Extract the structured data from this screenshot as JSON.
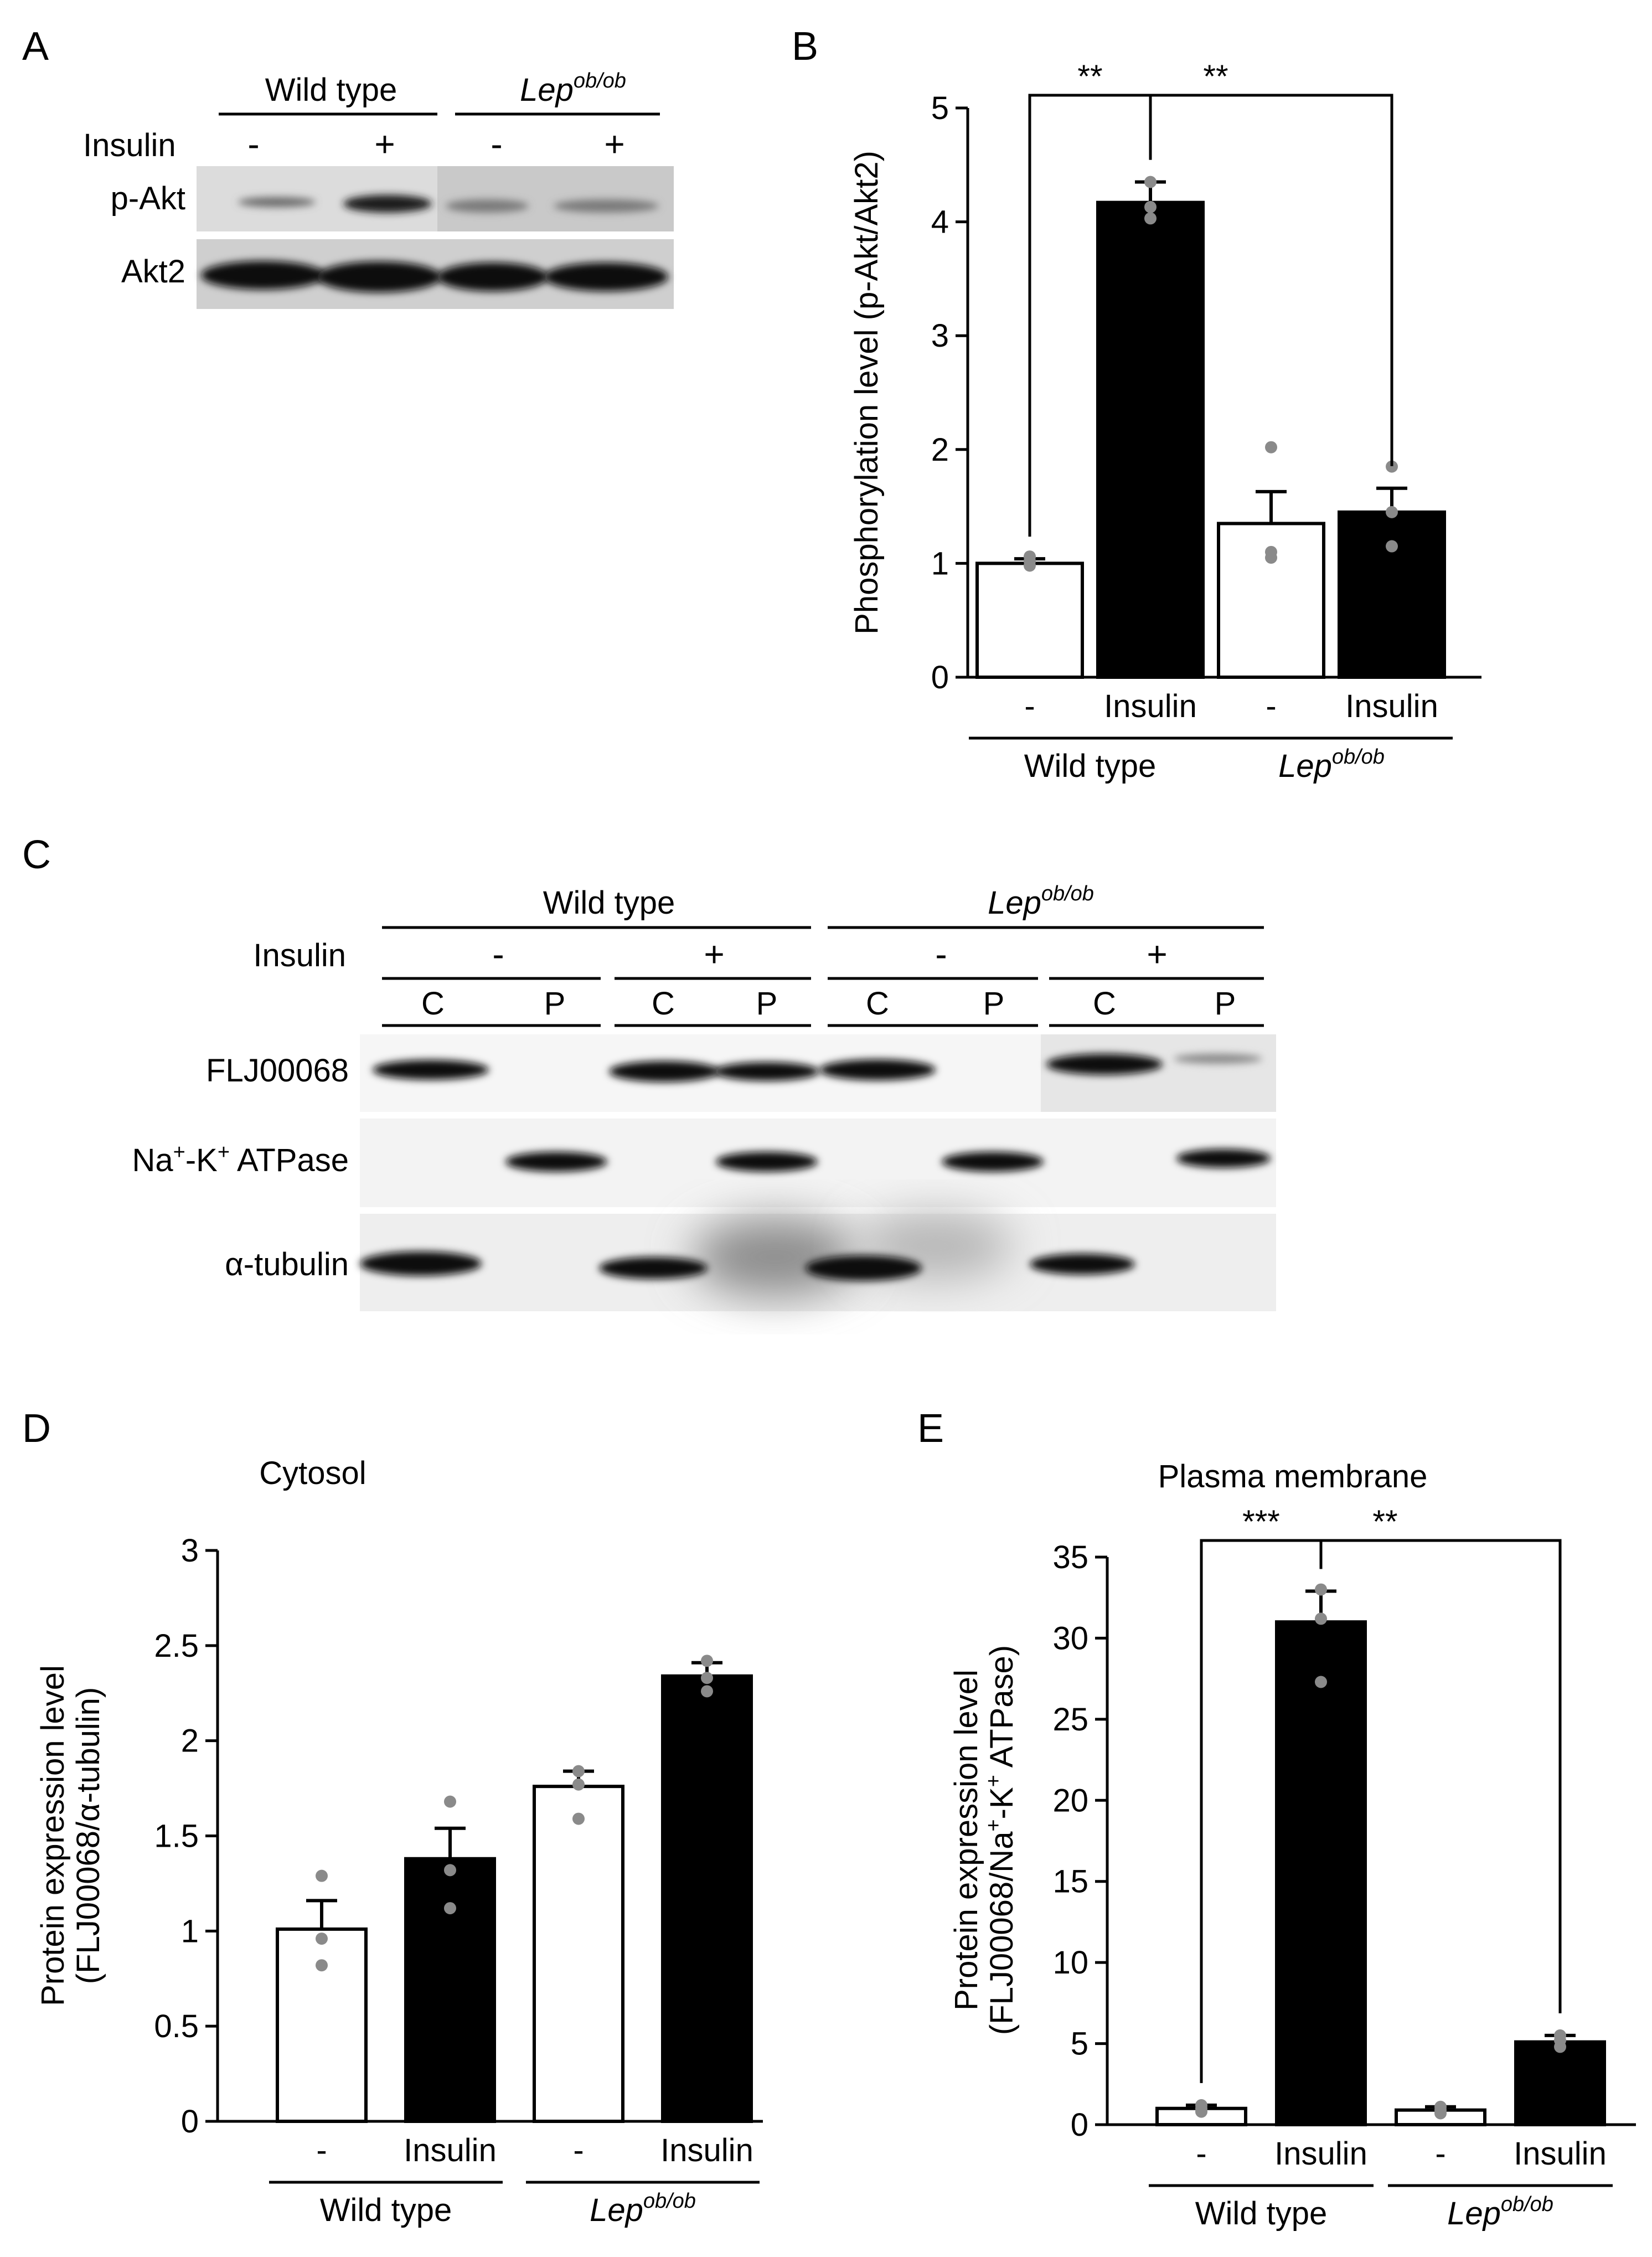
{
  "figure": {
    "panel_labels": [
      "A",
      "B",
      "C",
      "D",
      "E"
    ],
    "blot_a": {
      "groups": [
        "Wild type",
        "Lep"
      ],
      "group_superscripts": [
        "",
        "ob/ob"
      ],
      "insulin_label": "Insulin",
      "lane_signs": [
        "-",
        "+",
        "-",
        "+"
      ],
      "rows": [
        "p-Akt",
        "Akt2"
      ]
    },
    "blot_c": {
      "groups": [
        "Wild type",
        "Lep"
      ],
      "group_superscripts": [
        "",
        "ob/ob"
      ],
      "insulin_label": "Insulin",
      "insulin_signs": [
        "-",
        "+",
        "-",
        "+"
      ],
      "fractions": [
        "C",
        "P",
        "C",
        "P",
        "C",
        "P",
        "C",
        "P"
      ],
      "rows": [
        "FLJ00068",
        "Na",
        "ATPase",
        "α-tubulin"
      ],
      "na_k_parts": [
        "Na",
        "+",
        "-K",
        "+",
        " ATPase"
      ]
    }
  },
  "chart_data": [
    {
      "panel": "B",
      "type": "bar",
      "title": "",
      "ylabel": "Phosphorylation level (p-Akt/Akt2)",
      "categories": [
        "-",
        "Insulin",
        "-",
        "Insulin"
      ],
      "groups": [
        "Wild type",
        "Lep"
      ],
      "group_superscripts": [
        "",
        "ob/ob"
      ],
      "values": [
        1.0,
        4.17,
        1.35,
        1.45
      ],
      "errors": [
        0.04,
        0.18,
        0.28,
        0.21
      ],
      "points": [
        [
          0.98,
          1.02,
          1.06
        ],
        [
          4.03,
          4.13,
          4.35
        ],
        [
          1.05,
          1.1,
          2.02
        ],
        [
          1.15,
          1.45,
          1.85
        ]
      ],
      "fills": [
        "#ffffff",
        "#000000",
        "#ffffff",
        "#000000"
      ],
      "ylim": [
        0,
        5
      ],
      "yticks": [
        0,
        1,
        2,
        3,
        4,
        5
      ],
      "brackets": [
        {
          "from": 0,
          "to": 1,
          "label": "**"
        },
        {
          "from": 1,
          "to": 3,
          "label": "**"
        }
      ]
    },
    {
      "panel": "D",
      "type": "bar",
      "title": "Cytosol",
      "ylabel": "Protein expression level (FLJ00068/α-tubulin)",
      "ylabel_lines": [
        "Protein expression level",
        "(FLJ00068/α-tubulin)"
      ],
      "categories": [
        "-",
        "Insulin",
        "-",
        "Insulin"
      ],
      "groups": [
        "Wild type",
        "Lep"
      ],
      "group_superscripts": [
        "",
        "ob/ob"
      ],
      "values": [
        1.01,
        1.38,
        1.76,
        2.34
      ],
      "errors": [
        0.15,
        0.16,
        0.08,
        0.07
      ],
      "points": [
        [
          0.82,
          0.96,
          1.29
        ],
        [
          1.12,
          1.32,
          1.68
        ],
        [
          1.59,
          1.77,
          1.84
        ],
        [
          2.26,
          2.33,
          2.42
        ]
      ],
      "fills": [
        "#ffffff",
        "#000000",
        "#ffffff",
        "#000000"
      ],
      "ylim": [
        0,
        3
      ],
      "yticks": [
        "0",
        "0.5",
        "1",
        "1.5",
        "2",
        "2.5",
        "3"
      ],
      "brackets": []
    },
    {
      "panel": "E",
      "type": "bar",
      "title": "Plasma membrane",
      "ylabel": "Protein expression level (FLJ00068/Na+-K+ ATPase)",
      "ylabel_lines": [
        "Protein expression level",
        "(FLJ00068/Na",
        "+",
        "-K",
        "+",
        " ATPase)"
      ],
      "categories": [
        "-",
        "Insulin",
        "-",
        "Insulin"
      ],
      "groups": [
        "Wild type",
        "Lep"
      ],
      "group_superscripts": [
        "",
        "ob/ob"
      ],
      "values": [
        1.0,
        31.0,
        0.9,
        5.1
      ],
      "errors": [
        0.2,
        1.9,
        0.2,
        0.4
      ],
      "points": [
        [
          0.8,
          1.0,
          1.2
        ],
        [
          27.3,
          31.2,
          33.0
        ],
        [
          0.7,
          0.9,
          1.1
        ],
        [
          4.8,
          5.2,
          5.5
        ]
      ],
      "fills": [
        "#ffffff",
        "#000000",
        "#ffffff",
        "#000000"
      ],
      "ylim": [
        0,
        35
      ],
      "yticks": [
        0,
        5,
        10,
        15,
        20,
        25,
        30,
        35
      ],
      "brackets": [
        {
          "from": 0,
          "to": 1,
          "label": "***"
        },
        {
          "from": 1,
          "to": 3,
          "label": "**"
        }
      ]
    }
  ],
  "colors": {
    "point": "#8a8a8a",
    "bar_dark": "#000000",
    "bar_light": "#ffffff",
    "band": "#111111"
  }
}
